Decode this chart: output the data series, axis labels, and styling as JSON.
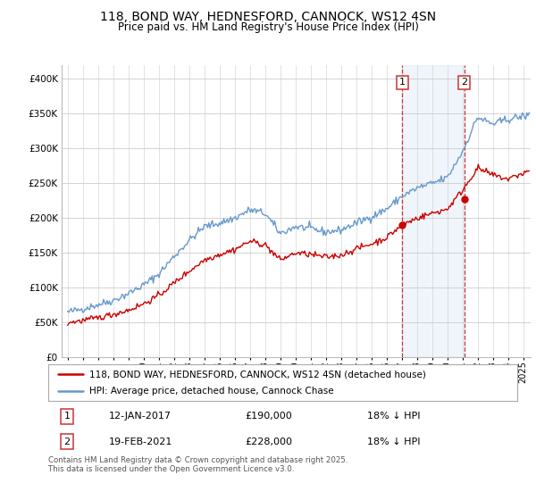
{
  "title": "118, BOND WAY, HEDNESFORD, CANNOCK, WS12 4SN",
  "subtitle": "Price paid vs. HM Land Registry's House Price Index (HPI)",
  "legend_label_red": "118, BOND WAY, HEDNESFORD, CANNOCK, WS12 4SN (detached house)",
  "legend_label_blue": "HPI: Average price, detached house, Cannock Chase",
  "annotation1_date": "12-JAN-2017",
  "annotation1_price": "£190,000",
  "annotation1_hpi": "18% ↓ HPI",
  "annotation2_date": "19-FEB-2021",
  "annotation2_price": "£228,000",
  "annotation2_hpi": "18% ↓ HPI",
  "footer": "Contains HM Land Registry data © Crown copyright and database right 2025.\nThis data is licensed under the Open Government Licence v3.0.",
  "ylim": [
    0,
    420000
  ],
  "yticks": [
    0,
    50000,
    100000,
    150000,
    200000,
    250000,
    300000,
    350000,
    400000
  ],
  "color_red": "#cc0000",
  "color_blue": "#6699cc",
  "color_vline": "#cc3333",
  "shade_color": "#aaccee",
  "background_color": "#ffffff",
  "marker1_x": 2017.04,
  "marker1_y_red": 190000,
  "marker2_x": 2021.12,
  "marker2_y_red": 228000,
  "xlim_left": 1994.6,
  "xlim_right": 2025.5
}
